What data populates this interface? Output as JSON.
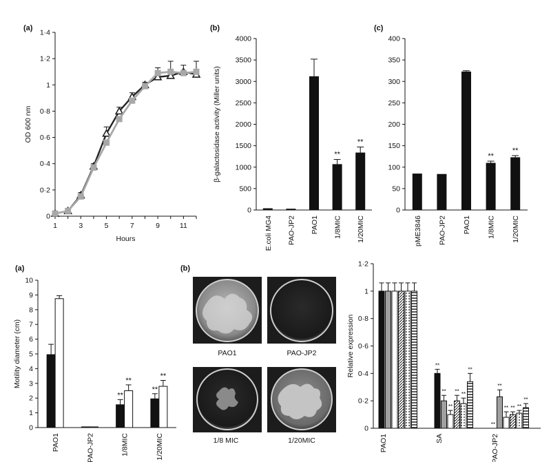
{
  "chart_data": [
    {
      "panel": "(a)",
      "type": "line",
      "xlabel": "Hours",
      "ylabel": "OD 600 nm",
      "xlim": [
        1,
        12
      ],
      "ylim": [
        0,
        1.4
      ],
      "x_ticks": [
        "1",
        "3",
        "5",
        "7",
        "9",
        "11"
      ],
      "y_ticks": [
        "0",
        "0·2",
        "0·4",
        "0·6",
        "0·8",
        "1",
        "1·2",
        "1·4"
      ],
      "x": [
        1,
        2,
        3,
        4,
        5,
        6,
        7,
        8,
        9,
        10,
        11,
        12
      ],
      "series": [
        {
          "marker": "triangle",
          "color": "#222222",
          "values": [
            0.02,
            0.04,
            0.16,
            0.38,
            0.63,
            0.8,
            0.91,
            1.0,
            1.06,
            1.07,
            1.1,
            1.08
          ]
        },
        {
          "marker": "square",
          "color": "#a8a8a8",
          "values": [
            0.02,
            0.04,
            0.15,
            0.37,
            0.56,
            0.74,
            0.88,
            0.99,
            1.09,
            1.1,
            1.09,
            1.1
          ]
        }
      ],
      "error_bars": [
        0.01,
        0.01,
        0.02,
        0.02,
        0.05,
        0.03,
        0.03,
        0.02,
        0.04,
        0.08,
        0.05,
        0.08
      ]
    },
    {
      "panel": "(b)",
      "type": "bar",
      "ylabel": "β-galactosidase activity (Miller units)",
      "ylim": [
        0,
        4000
      ],
      "y_ticks": [
        "0",
        "500",
        "1000",
        "1500",
        "2000",
        "2500",
        "3000",
        "3500",
        "4000"
      ],
      "categories": [
        "E.coli MG4",
        "PAO-JP2",
        "PAO1",
        "1/8MIC",
        "1/20MIC"
      ],
      "values": [
        40,
        30,
        3120,
        1070,
        1340
      ],
      "errors": [
        0,
        0,
        400,
        110,
        130
      ],
      "significance": [
        "",
        "",
        "",
        "**",
        "**"
      ]
    },
    {
      "panel": "(c)",
      "type": "bar",
      "ylim": [
        0,
        400
      ],
      "y_ticks": [
        "0",
        "50",
        "100",
        "150",
        "200",
        "250",
        "300",
        "350",
        "400"
      ],
      "categories": [
        "pME3846",
        "PAO-JP2",
        "PAO1",
        "1/8MIC",
        "1/20MIC"
      ],
      "values": [
        85,
        84,
        323,
        110,
        123
      ],
      "errors": [
        0,
        0,
        2,
        4,
        4
      ],
      "significance": [
        "",
        "",
        "",
        "**",
        "**"
      ]
    },
    {
      "panel": "(a)",
      "type": "bar",
      "ylabel": "Motility diameter (cm)",
      "ylim": [
        0,
        10
      ],
      "y_ticks": [
        "0",
        "1",
        "2",
        "3",
        "4",
        "5",
        "6",
        "7",
        "8",
        "9",
        "10"
      ],
      "categories": [
        "PAO1",
        "PAO-JP2",
        "1/8MIC",
        "1/20MIC"
      ],
      "series": [
        {
          "color": "#111111",
          "values": [
            4.95,
            0.05,
            1.55,
            1.95
          ],
          "errors": [
            0.7,
            0,
            0.35,
            0.35
          ],
          "significance": [
            "",
            "",
            "**",
            "**"
          ]
        },
        {
          "color": "#ffffff",
          "values": [
            8.75,
            0.05,
            2.5,
            2.8
          ],
          "errors": [
            0.2,
            0,
            0.4,
            0.4
          ],
          "significance": [
            "",
            "",
            "**",
            "**"
          ]
        }
      ]
    },
    {
      "panel": "",
      "type": "bar",
      "ylabel": "Relative expression",
      "ylim": [
        0,
        1.2
      ],
      "y_ticks": [
        "0",
        "0·2",
        "0·4",
        "0·6",
        "0·8",
        "1",
        "1·2"
      ],
      "categories": [
        "PAO1",
        "SA",
        "PAO-JP2"
      ],
      "series": [
        {
          "pattern": "solid-black",
          "values": [
            1,
            0.4,
            0
          ],
          "errors": [
            0.06,
            0.03,
            0
          ]
        },
        {
          "pattern": "solid-gray",
          "values": [
            1,
            0.2,
            0.23
          ],
          "errors": [
            0.06,
            0.04,
            0.05
          ]
        },
        {
          "pattern": "white",
          "values": [
            1,
            0.1,
            0.08
          ],
          "errors": [
            0.06,
            0.03,
            0.04
          ]
        },
        {
          "pattern": "hatched",
          "values": [
            1,
            0.2,
            0.1
          ],
          "errors": [
            0.06,
            0.04,
            0.02
          ]
        },
        {
          "pattern": "dotted",
          "values": [
            1,
            0.18,
            0.11
          ],
          "errors": [
            0.06,
            0.04,
            0.02
          ]
        },
        {
          "pattern": "horizontal",
          "values": [
            1,
            0.34,
            0.15
          ],
          "errors": [
            0.06,
            0.06,
            0.03
          ]
        }
      ],
      "significance": "**"
    }
  ],
  "figure_b": {
    "panel": "(b)",
    "plates": [
      "PAO1",
      "PAO-JP2",
      "1/8 MIC",
      "1/20MIC"
    ]
  }
}
